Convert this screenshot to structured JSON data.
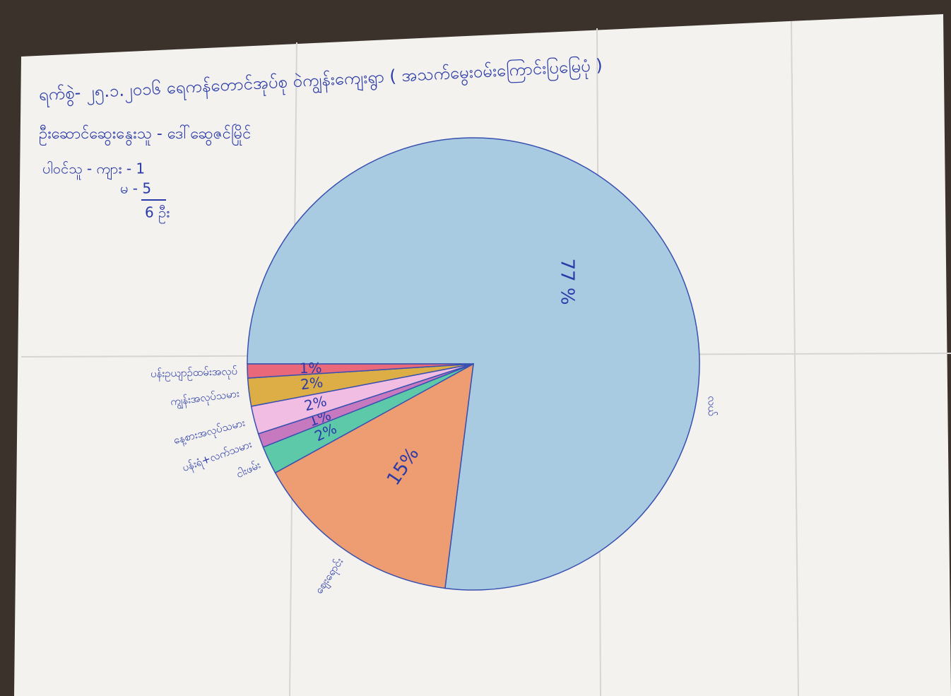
{
  "chart_data": {
    "type": "pie",
    "title": "ရက်စွဲ- ၂၅.၁.၂၀၁၆ ရေကန်တောင်အုပ်စု ဝဲကျွန်းကျေးရွာ ( အသက်မွေးဝမ်းကြောင်းပြမြေပုံ )",
    "facilitator": "ဦးဆောင်ဆွေးနွေးသူ - ဒေါ်ဆွေဇင်မြိုင်",
    "participants": [
      "ပါဝင်သူ - ကျား - 1",
      "မ - 5",
      "6 ဦး"
    ],
    "categories": [
      "လယ်",
      "ဈေးရောင်း",
      "ငါးဖမ်း",
      "ပန်းရံ+လက်သမား",
      "နေ့စားအလုပ်သမား",
      "ကျွန်းအလုပ်သမား",
      "ပန်းဥယျာဉ်ထမ်းအလုပ်"
    ],
    "values": [
      77,
      15,
      2,
      1,
      2,
      2,
      1
    ],
    "value_labels": [
      "77 %",
      "15%",
      "2%",
      "1%",
      "2%",
      "2%",
      "1%"
    ],
    "colors": [
      "#a9cbe2",
      "#ee9c72",
      "#5ec9a9",
      "#c779c0",
      "#f1bde3",
      "#dcae45",
      "#e9697a"
    ]
  }
}
